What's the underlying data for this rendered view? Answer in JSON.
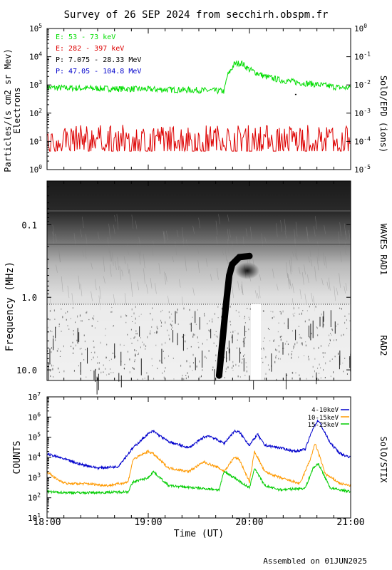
{
  "title": "Survey of 26 SEP 2024 from secchirh.obspm.fr",
  "footer": "Assembled on 01JUN2025",
  "xaxis": {
    "label": "Time (UT)",
    "ticks": [
      "18:00",
      "19:00",
      "20:00",
      "21:00"
    ],
    "range_hours": [
      18,
      21
    ]
  },
  "colors": {
    "electrons_low": "#00dd00",
    "electrons_high": "#dd0000",
    "protons_low": "#000000",
    "protons_high": "#0000cc",
    "stix_low": "#0000cc",
    "stix_mid": "#ff9900",
    "stix_high": "#00cc00"
  },
  "chart_data": [
    {
      "type": "line",
      "panel": "particles",
      "ylabel": "Particles/(s cm2 sr Mev)",
      "ylabel2": "Electrons",
      "right_label": "SolO/EPD (ions)",
      "yscale": "log",
      "ylim": [
        1,
        100000
      ],
      "y_ticks": [
        "10^0",
        "10^1",
        "10^2",
        "10^3",
        "10^4",
        "10^5"
      ],
      "y2lim": [
        1e-05,
        1
      ],
      "y2_ticks": [
        "10^-5",
        "10^-4",
        "10^-3",
        "10^-2",
        "10^-1",
        "10^0"
      ],
      "legend": [
        {
          "label": "E: 53 - 73 keV",
          "color": "#00dd00"
        },
        {
          "label": "E: 282 - 397 keV",
          "color": "#dd0000"
        },
        {
          "label": "P: 7.075 - 28.33 MeV",
          "color": "#000000"
        },
        {
          "label": "P: 47.05 - 104.8 MeV",
          "color": "#0000cc"
        }
      ],
      "series": [
        {
          "name": "E: 53 - 73 keV",
          "x": [
            18.0,
            18.5,
            19.0,
            19.5,
            19.75,
            19.78,
            19.85,
            19.92,
            20.0,
            20.15,
            20.3,
            20.5,
            20.7,
            20.9,
            21.0
          ],
          "y": [
            800,
            750,
            700,
            650,
            600,
            2000,
            5500,
            6000,
            3500,
            2000,
            1500,
            1200,
            1000,
            800,
            800
          ]
        },
        {
          "name": "E: 282 - 397 keV",
          "x": [
            18.0,
            18.5,
            19.0,
            19.5,
            20.0,
            20.5,
            21.0
          ],
          "y": [
            10,
            10,
            10,
            10,
            10,
            10,
            10
          ]
        }
      ]
    },
    {
      "type": "heatmap",
      "panel": "radio",
      "ylabel": "Frequency (MHz)",
      "yscale": "log",
      "ylim": [
        0.025,
        14
      ],
      "y_ticks": [
        "0.1",
        "1.0",
        "10.0"
      ],
      "right_labels": [
        "WAVES RAD1",
        "RAD2"
      ],
      "burst": {
        "type": "III",
        "x": [
          19.7,
          19.77,
          19.8,
          19.83,
          19.9,
          20.0
        ],
        "freq_mhz": [
          12.0,
          1.2,
          0.5,
          0.35,
          0.28,
          0.27
        ]
      }
    },
    {
      "type": "line",
      "panel": "stix",
      "ylabel": "COUNTS",
      "right_label": "SolO/STIX",
      "yscale": "log",
      "ylim": [
        10,
        10000000
      ],
      "y_ticks": [
        "10^1",
        "10^2",
        "10^3",
        "10^4",
        "10^5",
        "10^6",
        "10^7"
      ],
      "legend": [
        {
          "label": "4-10keV",
          "color": "#0000cc"
        },
        {
          "label": "10-15keV",
          "color": "#ff9900"
        },
        {
          "label": "15-25keV",
          "color": "#00cc00"
        }
      ],
      "series": [
        {
          "name": "4-10keV",
          "x": [
            18.0,
            18.15,
            18.3,
            18.5,
            18.7,
            18.85,
            19.0,
            19.05,
            19.2,
            19.4,
            19.55,
            19.6,
            19.75,
            19.85,
            19.9,
            20.0,
            20.08,
            20.15,
            20.3,
            20.45,
            20.55,
            20.63,
            20.68,
            20.8,
            20.9,
            21.0
          ],
          "y": [
            15000,
            9000,
            5000,
            3000,
            3500,
            30000,
            150000,
            200000,
            60000,
            30000,
            100000,
            120000,
            50000,
            200000,
            180000,
            40000,
            140000,
            40000,
            30000,
            20000,
            25000,
            300000,
            700000,
            50000,
            15000,
            10000
          ]
        },
        {
          "name": "10-15keV",
          "x": [
            18.0,
            18.1,
            18.2,
            18.4,
            18.6,
            18.8,
            18.85,
            19.0,
            19.05,
            19.2,
            19.4,
            19.55,
            19.7,
            19.75,
            19.85,
            19.9,
            20.0,
            20.05,
            20.15,
            20.3,
            20.5,
            20.6,
            20.65,
            20.75,
            20.9,
            21.0
          ],
          "y": [
            2000,
            800,
            500,
            500,
            400,
            600,
            8000,
            20000,
            15000,
            3000,
            2000,
            6000,
            3000,
            2000,
            10000,
            8000,
            600,
            20000,
            2000,
            1000,
            500,
            8000,
            50000,
            1500,
            500,
            400
          ]
        },
        {
          "name": "15-25keV",
          "x": [
            18.0,
            18.2,
            18.5,
            18.8,
            18.85,
            19.0,
            19.05,
            19.2,
            19.5,
            19.7,
            19.75,
            19.85,
            20.0,
            20.05,
            20.15,
            20.3,
            20.55,
            20.63,
            20.68,
            20.8,
            21.0
          ],
          "y": [
            200,
            180,
            180,
            200,
            600,
            1000,
            2000,
            400,
            300,
            250,
            2000,
            1000,
            300,
            3000,
            400,
            250,
            300,
            3000,
            5000,
            300,
            200
          ]
        }
      ]
    }
  ]
}
